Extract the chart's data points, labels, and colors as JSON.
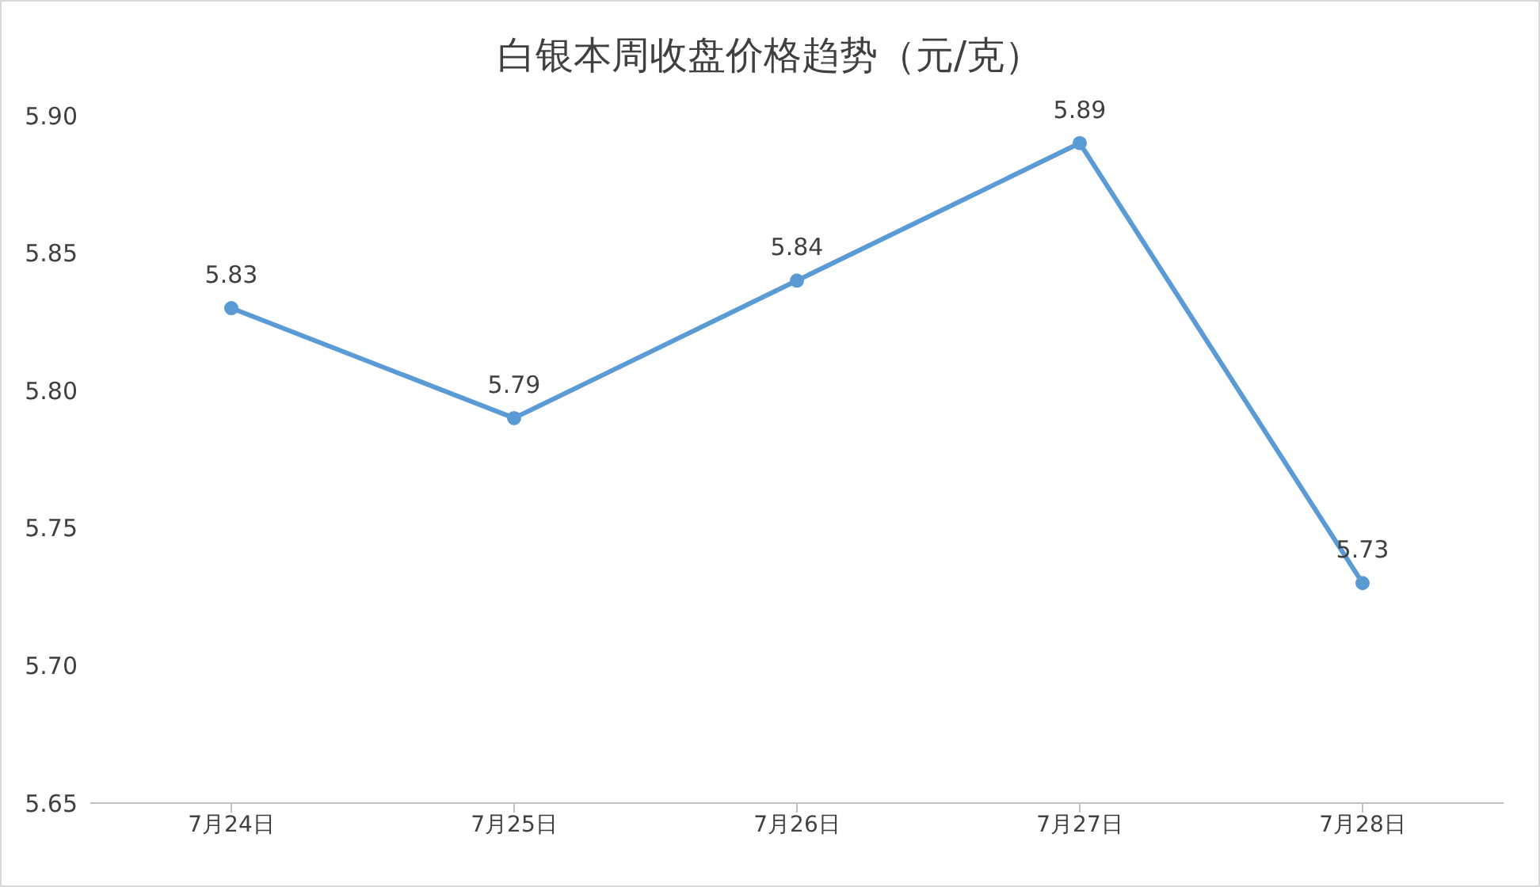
{
  "chart_data": {
    "type": "line",
    "title": "白银本周收盘价格趋势（元/克）",
    "categories": [
      "7月24日",
      "7月25日",
      "7月26日",
      "7月27日",
      "7月28日"
    ],
    "series": [
      {
        "color": "#5b9bd5",
        "values": [
          5.83,
          5.79,
          5.84,
          5.89,
          5.73
        ]
      }
    ],
    "ylim": [
      5.65,
      5.9
    ],
    "yticks": [
      {
        "value": 5.65,
        "label": "5.65"
      },
      {
        "value": 5.7,
        "label": "5.70"
      },
      {
        "value": 5.75,
        "label": "5.75"
      },
      {
        "value": 5.8,
        "label": "5.80"
      },
      {
        "value": 5.85,
        "label": "5.85"
      },
      {
        "value": 5.9,
        "label": "5.90"
      }
    ],
    "data_labels": true,
    "marker": "circle",
    "grid": false,
    "legend": false
  }
}
